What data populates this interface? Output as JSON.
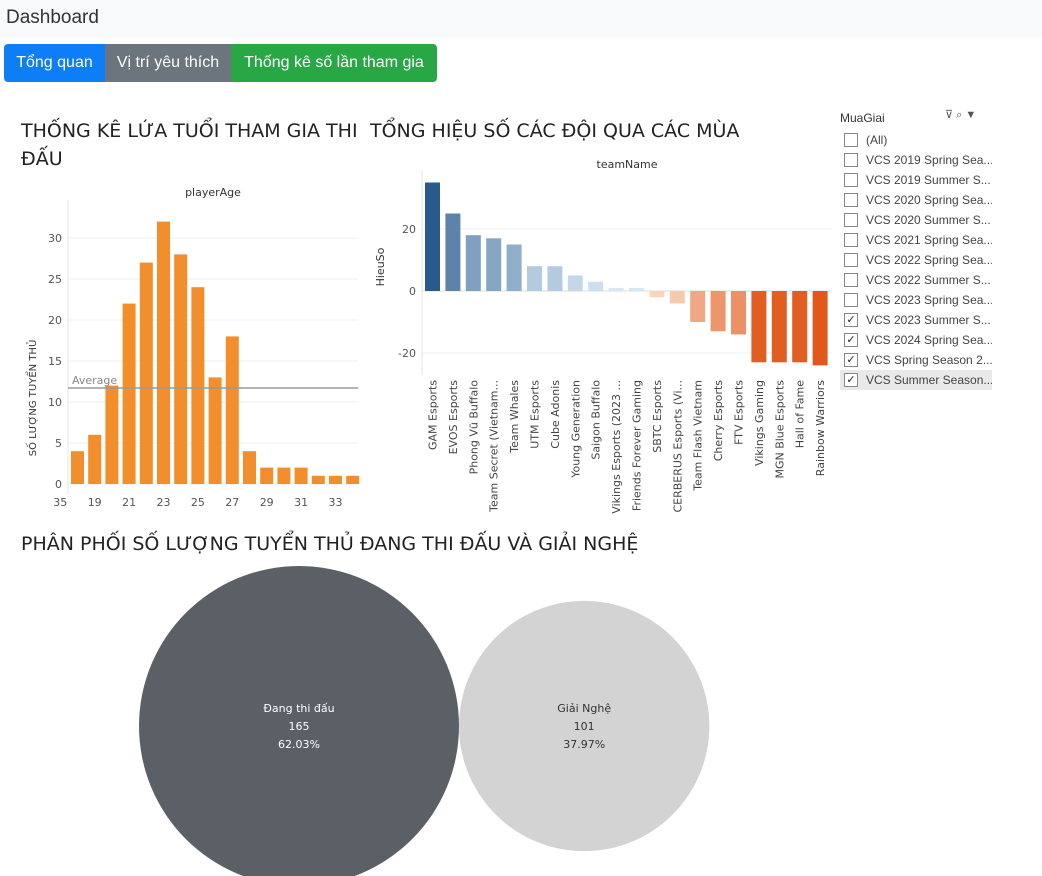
{
  "nav": {
    "brand": "Dashboard",
    "buttons": [
      "Tổng quan",
      "Vị trí yêu thích",
      "Thống kê số lần tham gia"
    ]
  },
  "age_chart": {
    "title_line1": "THỐNG KÊ LỨA TUỔI THAM GIA THI",
    "title_line2": "ĐẤU",
    "header": "playerAge",
    "ylabel": "SỐ LƯỢNG TUYỂN THỦ",
    "average_label": "Average"
  },
  "diff_chart": {
    "title": "TỔNG HIỆU SỐ CÁC ĐỘI QUA CÁC MÙA",
    "header": "teamName",
    "ylabel": "HieuSo"
  },
  "pie_chart": {
    "title": "PHÂN PHỐI SỐ LƯỢNG TUYỂN THỦ ĐANG THI ĐẤU VÀ GIẢI NGHỆ"
  },
  "filter": {
    "title": "MuaGiai",
    "icons": [
      "filter-clear-icon",
      "search-icon",
      "dropdown-icon"
    ],
    "items": [
      {
        "label": "(All)",
        "checked": false
      },
      {
        "label": "VCS 2019 Spring Sea...",
        "checked": false
      },
      {
        "label": "VCS 2019 Summer S...",
        "checked": false
      },
      {
        "label": "VCS 2020 Spring Sea...",
        "checked": false
      },
      {
        "label": "VCS 2020 Summer S...",
        "checked": false
      },
      {
        "label": "VCS 2021 Spring Sea...",
        "checked": false
      },
      {
        "label": "VCS 2022 Spring Sea...",
        "checked": false
      },
      {
        "label": "VCS 2022 Summer S...",
        "checked": false
      },
      {
        "label": "VCS 2023 Spring Sea...",
        "checked": false
      },
      {
        "label": "VCS 2023 Summer S...",
        "checked": true
      },
      {
        "label": "VCS 2024 Spring Sea...",
        "checked": true
      },
      {
        "label": "VCS Spring Season 2...",
        "checked": true
      },
      {
        "label": "VCS Summer Season...",
        "checked": true
      }
    ]
  },
  "chart_data": [
    {
      "type": "bar",
      "title": "THỐNG KÊ LỨA TUỔI THAM GIA THI ĐẤU",
      "xlabel": "playerAge",
      "ylabel": "SỐ LƯỢNG TUYỂN THỦ",
      "categories": [
        18,
        19,
        20,
        21,
        22,
        23,
        24,
        25,
        26,
        27,
        28,
        29,
        30,
        31,
        32,
        33,
        34
      ],
      "values": [
        4,
        6,
        12,
        22,
        27,
        32,
        28,
        24,
        13,
        18,
        4,
        2,
        2,
        2,
        1,
        1,
        1
      ],
      "x_tick_labels": [
        "19",
        "21",
        "23",
        "25",
        "27",
        "29",
        "31",
        "33",
        "35"
      ],
      "y_ticks": [
        0,
        5,
        10,
        15,
        20,
        25,
        30
      ],
      "ylim": [
        0,
        35
      ],
      "reference_line": {
        "label": "Average",
        "value": 11.7
      },
      "color": "#f28e2b",
      "grid": true
    },
    {
      "type": "bar",
      "title": "TỔNG HIỆU SỐ CÁC ĐỘI QUA CÁC MÙA",
      "xlabel": "teamName",
      "ylabel": "HieuSo",
      "categories": [
        "GAM Esports",
        "EVOS Esports",
        "Phong Vũ Buffalo",
        "Team Secret (Vietnam...",
        "Team Whales",
        "UTM Esports",
        "Cube Adonis",
        "Young Generation",
        "Saigon Buffalo",
        "Vikings Esports (2023 ...",
        "Friends Forever Gaming",
        "SBTC Esports",
        "CERBERUS Esports (Vi...",
        "Team Flash Vietnam",
        "Cherry Esports",
        "FTV Esports",
        "Vikings Gaming",
        "MGN Blue Esports",
        "Hall of Fame",
        "Rainbow Warriors"
      ],
      "values": [
        35,
        25,
        18,
        17,
        15,
        8,
        8,
        5,
        3,
        1,
        1,
        -2,
        -4,
        -10,
        -13,
        -14,
        -23,
        -23,
        -23,
        -24
      ],
      "y_ticks": [
        -20,
        0,
        20
      ],
      "ylim": [
        -27,
        37
      ],
      "color_scale": "diverging blue-orange",
      "grid": true
    },
    {
      "type": "pie",
      "title": "PHÂN PHỐI SỐ LƯỢNG TUYỂN THỦ ĐANG THI ĐẤU VÀ GIẢI NGHỆ",
      "categories": [
        "Đang thi đấu",
        "Giải Nghệ"
      ],
      "values": [
        165,
        101
      ],
      "percent_labels": [
        "62.03%",
        "37.97%"
      ],
      "colors": [
        "#5b5f66",
        "#d3d3d3"
      ]
    }
  ]
}
